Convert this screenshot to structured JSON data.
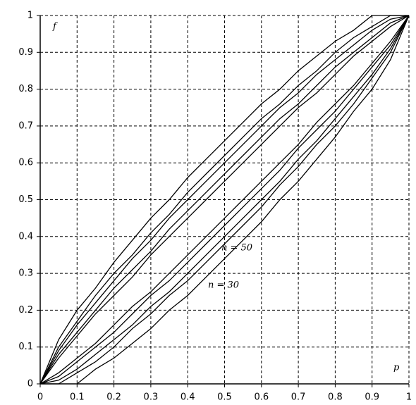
{
  "chart_data": {
    "type": "line",
    "x_label": "p",
    "y_label": "f",
    "annotations": [
      "n = 50",
      "n = 30"
    ],
    "x": [
      0,
      0.05,
      0.1,
      0.15,
      0.2,
      0.25,
      0.3,
      0.35,
      0.4,
      0.45,
      0.5,
      0.55,
      0.6,
      0.65,
      0.7,
      0.75,
      0.8,
      0.85,
      0.9,
      0.95,
      1
    ],
    "series": [
      {
        "color": "#000000",
        "values": [
          0,
          0.12,
          0.2,
          0.26,
          0.33,
          0.39,
          0.45,
          0.5,
          0.56,
          0.61,
          0.66,
          0.71,
          0.76,
          0.8,
          0.85,
          0.89,
          0.93,
          0.96,
          1,
          1,
          1
        ]
      },
      {
        "color": "#000000",
        "values": [
          null,
          null,
          0,
          0.04,
          0.07,
          0.11,
          0.15,
          0.2,
          0.24,
          0.29,
          0.34,
          0.39,
          0.44,
          0.5,
          0.55,
          0.61,
          0.67,
          0.74,
          0.8,
          0.88,
          1
        ]
      },
      {
        "color": "#000000",
        "values": [
          0,
          0.1,
          0.17,
          0.24,
          0.3,
          0.35,
          0.41,
          0.46,
          0.52,
          0.57,
          0.62,
          0.67,
          0.72,
          0.76,
          0.81,
          0.85,
          0.9,
          0.94,
          0.97,
          1,
          1
        ]
      },
      {
        "color": "#000000",
        "values": [
          0,
          0,
          0.03,
          0.06,
          0.1,
          0.15,
          0.19,
          0.24,
          0.28,
          0.33,
          0.38,
          0.43,
          0.48,
          0.54,
          0.59,
          0.65,
          0.7,
          0.76,
          0.83,
          0.9,
          1
        ]
      },
      {
        "color": "#000000",
        "values": [
          0,
          0.09,
          0.16,
          0.22,
          0.28,
          0.34,
          0.39,
          0.45,
          0.5,
          0.55,
          0.6,
          0.65,
          0.7,
          0.75,
          0.79,
          0.84,
          0.88,
          0.92,
          0.96,
          0.99,
          1
        ]
      },
      {
        "color": "#000000",
        "values": [
          0,
          0.01,
          0.04,
          0.08,
          0.12,
          0.16,
          0.21,
          0.25,
          0.3,
          0.35,
          0.4,
          0.45,
          0.5,
          0.55,
          0.61,
          0.66,
          0.72,
          0.78,
          0.84,
          0.91,
          1
        ]
      },
      {
        "color": "#000000",
        "values": [
          0,
          0.08,
          0.14,
          0.2,
          0.26,
          0.31,
          0.36,
          0.42,
          0.47,
          0.52,
          0.57,
          0.62,
          0.67,
          0.72,
          0.76,
          0.81,
          0.86,
          0.9,
          0.94,
          0.98,
          1
        ]
      },
      {
        "color": "#000000",
        "values": [
          0,
          0.02,
          0.06,
          0.1,
          0.14,
          0.19,
          0.24,
          0.28,
          0.33,
          0.38,
          0.43,
          0.48,
          0.53,
          0.58,
          0.64,
          0.69,
          0.74,
          0.8,
          0.86,
          0.92,
          1
        ]
      },
      {
        "color": "#000000",
        "values": [
          0,
          0.07,
          0.13,
          0.19,
          0.24,
          0.29,
          0.35,
          0.4,
          0.45,
          0.5,
          0.55,
          0.6,
          0.65,
          0.7,
          0.75,
          0.79,
          0.84,
          0.89,
          0.93,
          0.97,
          1
        ]
      },
      {
        "color": "#000000",
        "values": [
          0,
          0.03,
          0.07,
          0.11,
          0.16,
          0.21,
          0.25,
          0.3,
          0.35,
          0.4,
          0.45,
          0.5,
          0.55,
          0.6,
          0.65,
          0.71,
          0.76,
          0.81,
          0.87,
          0.93,
          1
        ]
      }
    ],
    "xlim": [
      0,
      1
    ],
    "ylim": [
      0,
      1
    ],
    "xticks": [
      0,
      0.1,
      0.2,
      0.3,
      0.4,
      0.5,
      0.6,
      0.7,
      0.8,
      0.9,
      1
    ],
    "yticks": [
      0,
      0.1,
      0.2,
      0.3,
      0.4,
      0.5,
      0.6,
      0.7,
      0.8,
      0.9,
      1
    ],
    "grid": true
  }
}
